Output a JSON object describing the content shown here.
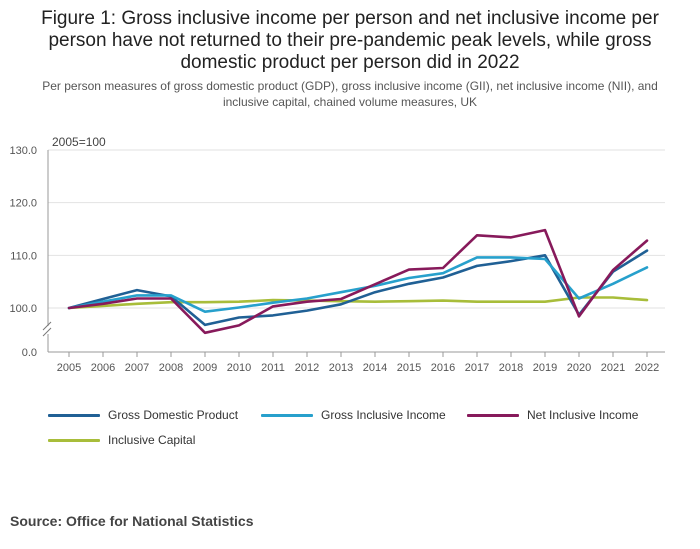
{
  "title": "Figure 1: Gross inclusive income per person and net inclusive income per person have not returned to their pre-pandemic peak levels, while gross domestic product per person did in 2022",
  "subtitle": "Per person measures of gross domestic product (GDP), gross inclusive income (GII), net inclusive income (NII), and inclusive capital, chained volume measures, UK",
  "source": "Source: Office for National Statistics",
  "chart_data": {
    "type": "line",
    "unit_label": "2005=100",
    "x": [
      "2005",
      "2006",
      "2007",
      "2008",
      "2009",
      "2010",
      "2011",
      "2012",
      "2013",
      "2014",
      "2015",
      "2016",
      "2017",
      "2018",
      "2019",
      "2020",
      "2021",
      "2022"
    ],
    "y_ticks": [
      "0.0",
      "100.0",
      "110.0",
      "120.0",
      "130.0"
    ],
    "y_axis_break": true,
    "ylim": [
      0,
      130
    ],
    "grid": true,
    "legend_position": "bottom",
    "series": [
      {
        "name": "Gross Domestic Product",
        "color": "#206095",
        "values": [
          100.0,
          101.7,
          103.4,
          102.2,
          96.8,
          98.2,
          98.6,
          99.5,
          100.7,
          103.0,
          104.6,
          105.8,
          108.0,
          108.9,
          110.0,
          98.7,
          106.9,
          110.9
        ]
      },
      {
        "name": "Gross Inclusive Income",
        "color": "#27A0CC",
        "values": [
          100.0,
          101.2,
          102.4,
          102.4,
          99.3,
          100.1,
          101.0,
          101.8,
          103.0,
          104.2,
          105.7,
          106.6,
          109.6,
          109.6,
          109.3,
          101.8,
          104.6,
          107.7
        ]
      },
      {
        "name": "Net Inclusive Income",
        "color": "#871A5B",
        "values": [
          100.0,
          100.8,
          101.8,
          101.8,
          95.3,
          96.7,
          100.3,
          101.2,
          101.7,
          104.5,
          107.3,
          107.6,
          113.8,
          113.4,
          114.8,
          98.4,
          107.2,
          112.8
        ]
      },
      {
        "name": "Inclusive Capital",
        "color": "#A8BD3A",
        "values": [
          100.0,
          100.4,
          100.8,
          101.1,
          101.1,
          101.2,
          101.5,
          101.4,
          101.3,
          101.2,
          101.3,
          101.4,
          101.2,
          101.2,
          101.2,
          102.0,
          102.0,
          101.5
        ]
      }
    ]
  }
}
